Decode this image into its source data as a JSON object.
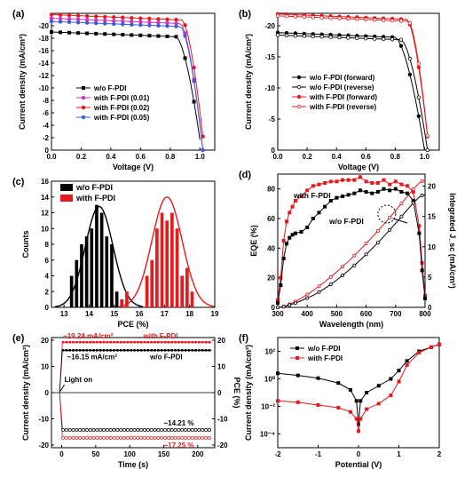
{
  "colors": {
    "black": "#000000",
    "red": "#e41a1c",
    "magenta": "#d62fc9",
    "blue": "#3b5bdb"
  },
  "chart_data": [
    {
      "panel": "(a)",
      "type": "line",
      "xlabel": "Voltage (V)",
      "ylabel": "Current density (mA/cm²)",
      "xlim": [
        0,
        1.1
      ],
      "ylim": [
        0,
        22
      ],
      "yreversed": true,
      "xticks": [
        "0.0",
        "0.2",
        "0.4",
        "0.6",
        "0.8",
        "1.0"
      ],
      "yticks": [
        "0",
        "-2",
        "-4",
        "-6",
        "-8",
        "-10",
        "-12",
        "-14",
        "-16",
        "-18",
        "-20"
      ],
      "legend": "center",
      "series": [
        {
          "name": "w/o F-PDI",
          "jsc": 19.0,
          "voc": 1.01,
          "knee": 0.84,
          "color": "black"
        },
        {
          "name": "with F-PDI (0.01)",
          "jsc": 21.2,
          "voc": 1.02,
          "knee": 0.87,
          "color": "magenta"
        },
        {
          "name": "with F-PDI (0.02)",
          "jsc": 21.8,
          "voc": 1.03,
          "knee": 0.88,
          "color": "red"
        },
        {
          "name": "with F-PDI (0.05)",
          "jsc": 20.7,
          "voc": 1.02,
          "knee": 0.87,
          "color": "blue"
        }
      ]
    },
    {
      "panel": "(b)",
      "type": "line",
      "xlabel": "Voltage (V)",
      "ylabel": "Current density (mA/cm²)",
      "xlim": [
        0,
        1.1
      ],
      "ylim": [
        0,
        22
      ],
      "yreversed": true,
      "xticks": [
        "0.0",
        "0.2",
        "0.4",
        "0.6",
        "0.8",
        "1.0"
      ],
      "yticks": [
        "0",
        "-5",
        "-10",
        "-15",
        "-20"
      ],
      "legend": "center",
      "series": [
        {
          "name": "w/o F-PDI (forward)",
          "jsc": 18.9,
          "voc": 1.0,
          "knee": 0.8,
          "color": "black",
          "filled": true
        },
        {
          "name": "w/o F-PDI (reverse)",
          "jsc": 18.5,
          "voc": 1.02,
          "knee": 0.84,
          "color": "black",
          "filled": false
        },
        {
          "name": "with F-PDI (forward)",
          "jsc": 21.9,
          "voc": 1.03,
          "knee": 0.88,
          "color": "red",
          "filled": true
        },
        {
          "name": "with F-PDI (reverse)",
          "jsc": 21.6,
          "voc": 1.03,
          "knee": 0.89,
          "color": "red",
          "filled": false
        }
      ]
    },
    {
      "panel": "(c)",
      "type": "bar",
      "xlabel": "PCE (%)",
      "ylabel": "Counts",
      "xlim": [
        12.5,
        19
      ],
      "ylim": [
        0,
        16
      ],
      "xticks": [
        "13",
        "14",
        "15",
        "16",
        "17",
        "18",
        "19"
      ],
      "yticks": [
        "0",
        "2",
        "4",
        "6",
        "8",
        "10",
        "12",
        "14",
        "16"
      ],
      "legend": "top-left",
      "series": [
        {
          "name": "w/o F-PDI",
          "color": "black",
          "x": [
            13.3,
            13.5,
            13.7,
            13.9,
            14.1,
            14.3,
            14.5,
            14.7,
            14.9,
            15.1,
            15.3
          ],
          "values": [
            4,
            6,
            8,
            9,
            10,
            13,
            12,
            9,
            8,
            2,
            1
          ],
          "fit_mean": 14.4,
          "fit_sigma": 0.55,
          "fit_peak": 12.8
        },
        {
          "name": "with F-PDI",
          "color": "red",
          "x": [
            15.3,
            15.5,
            16.3,
            16.5,
            16.7,
            16.9,
            17.1,
            17.3,
            17.5,
            17.7,
            17.9,
            18.1
          ],
          "values": [
            1,
            2,
            4,
            6,
            10,
            12,
            11,
            12,
            10,
            4,
            5,
            2
          ],
          "fit_mean": 17.1,
          "fit_sigma": 0.6,
          "fit_peak": 14
        }
      ]
    },
    {
      "panel": "(d)",
      "type": "line",
      "xlabel": "Wavelength (nm)",
      "ylabel": "EQE (%)",
      "y2label": "Integrated J_sc (mA/cm²)",
      "xlim": [
        300,
        800
      ],
      "ylim": [
        0,
        90
      ],
      "y2lim": [
        0,
        22
      ],
      "xticks": [
        "300",
        "400",
        "500",
        "600",
        "700",
        "800"
      ],
      "yticks": [
        "0",
        "20",
        "40",
        "60",
        "80"
      ],
      "y2ticks": [
        "0",
        "5",
        "10",
        "15",
        "20"
      ],
      "annotations": [
        "with F-PDI",
        "w/o F-PDI"
      ],
      "series": [
        {
          "name": "with F-PDI",
          "color": "red",
          "x": [
            300,
            310,
            320,
            330,
            340,
            350,
            360,
            380,
            400,
            420,
            440,
            460,
            480,
            500,
            520,
            540,
            560,
            580,
            600,
            620,
            640,
            660,
            680,
            700,
            720,
            740,
            760,
            780,
            790,
            800
          ],
          "values": [
            5,
            20,
            45,
            58,
            64,
            68,
            72,
            75,
            79,
            82,
            83,
            84,
            85,
            85,
            86,
            86,
            86,
            88,
            85,
            84,
            84,
            86,
            83,
            85,
            83,
            82,
            78,
            55,
            30,
            8
          ]
        },
        {
          "name": "w/o F-PDI",
          "color": "black",
          "x": [
            300,
            310,
            320,
            330,
            340,
            350,
            360,
            380,
            400,
            420,
            440,
            460,
            480,
            500,
            520,
            540,
            560,
            580,
            600,
            620,
            640,
            660,
            680,
            700,
            720,
            740,
            760,
            780,
            790,
            800
          ],
          "values": [
            3,
            15,
            33,
            43,
            47,
            49,
            50,
            51,
            54,
            60,
            64,
            68,
            72,
            74,
            75,
            76,
            77,
            79,
            78,
            77,
            78,
            80,
            79,
            80,
            78,
            77,
            72,
            50,
            25,
            6
          ]
        }
      ]
    },
    {
      "panel": "(e)",
      "type": "scatter",
      "xlabel": "Time (s)",
      "ylabel": "Current density (mA/cm²)",
      "y2label": "PCE (%)",
      "xlim": [
        -15,
        225
      ],
      "ylim": [
        -21,
        21
      ],
      "xticks": [
        "0",
        "50",
        "100",
        "150",
        "200"
      ],
      "yticks": [
        "-20",
        "-10",
        "0",
        "10",
        "20"
      ],
      "y2ticks": [
        "-20",
        "-10",
        "0",
        "10",
        "20"
      ],
      "annotations": {
        "jsc_with": "~19.24 mA/cm²",
        "label_with": "with F-PDI",
        "jsc_wo": "~16.15 mA/cm²",
        "label_wo": "w/o F-PDI",
        "light": "Light on",
        "pce_wo": "~14.21 %",
        "pce_with": "~17.25 %"
      },
      "series": [
        {
          "name": "with F-PDI current",
          "color": "red",
          "level": 19.24
        },
        {
          "name": "w/o F-PDI current",
          "color": "black",
          "level": 16.15
        },
        {
          "name": "w/o F-PDI PCE",
          "color": "black",
          "level": -14.21
        },
        {
          "name": "with F-PDI PCE",
          "color": "red",
          "level": -17.25
        }
      ]
    },
    {
      "panel": "(f)",
      "type": "line",
      "xlabel": "Potential (V)",
      "ylabel": "Current density (mA/cm²)",
      "xlim": [
        -2,
        2
      ],
      "ylog": true,
      "ylim_exp": [
        -5,
        3
      ],
      "xticks": [
        "-2",
        "-1",
        "0",
        "1",
        "2"
      ],
      "yticks": [
        "10⁻⁴",
        "10⁻²",
        "10⁰",
        "10²"
      ],
      "legend": "top-left",
      "series": [
        {
          "name": "w/o F-PDI",
          "color": "black",
          "x": [
            -2,
            -1.5,
            -1,
            -0.5,
            -0.2,
            -0.05,
            0,
            0.05,
            0.2,
            0.5,
            0.8,
            1,
            1.2,
            1.5,
            1.8,
            2
          ],
          "log10": [
            0.4,
            0.25,
            0.05,
            -0.3,
            -0.8,
            -1.6,
            -3.3,
            -1.6,
            -1.0,
            -0.5,
            0.0,
            0.6,
            1.3,
            2.0,
            2.3,
            2.5
          ]
        },
        {
          "name": "with F-PDI",
          "color": "red",
          "x": [
            -2,
            -1.5,
            -1,
            -0.5,
            -0.2,
            -0.05,
            0,
            0.05,
            0.2,
            0.5,
            0.8,
            1,
            1.2,
            1.5,
            1.8,
            2
          ],
          "log10": [
            -1.6,
            -1.7,
            -1.9,
            -2.1,
            -2.4,
            -2.9,
            -3.8,
            -2.9,
            -2.2,
            -1.8,
            -1.2,
            -0.2,
            1.0,
            1.9,
            2.3,
            2.5
          ]
        }
      ]
    }
  ]
}
